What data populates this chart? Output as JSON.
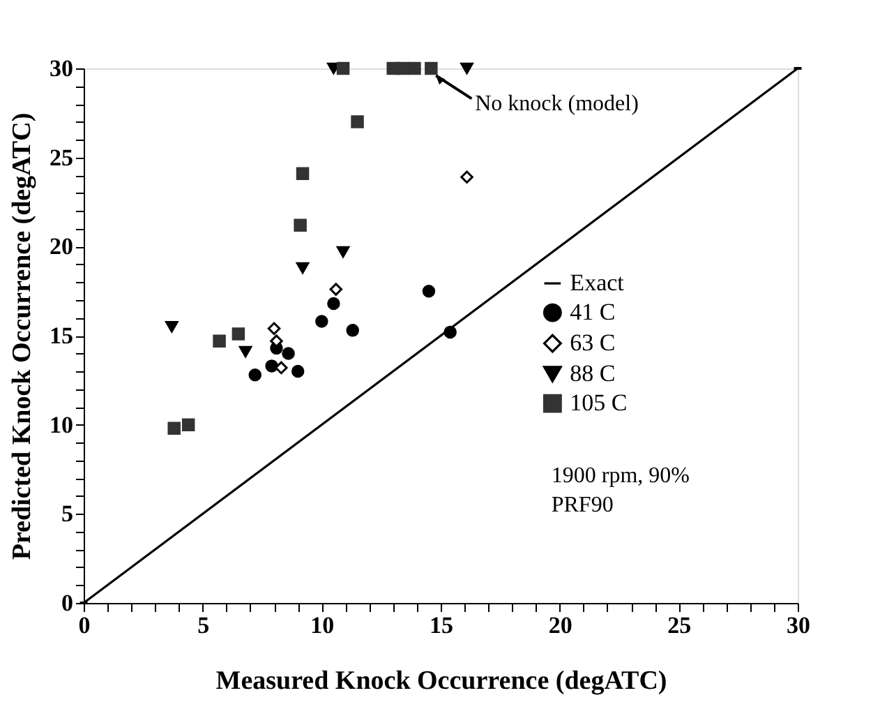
{
  "chart_data": {
    "type": "scatter",
    "xlabel": "Measured Knock Occurrence (degATC)",
    "ylabel": "Predicted Knock Occurrence (degATC)",
    "xlim": [
      0,
      30
    ],
    "ylim": [
      0,
      30
    ],
    "xticks": [
      0,
      {
        "value": 1,
        "label": null
      },
      {
        "value": 2,
        "label": null
      },
      {
        "value": 3,
        "label": null
      },
      {
        "value": 4,
        "label": null
      },
      5,
      {
        "value": 6,
        "label": null
      },
      {
        "value": 7,
        "label": null
      },
      {
        "value": 8,
        "label": null
      },
      {
        "value": 9,
        "label": null
      },
      10,
      {
        "value": 11,
        "label": null
      },
      {
        "value": 12,
        "label": null
      },
      {
        "value": 13,
        "label": null
      },
      {
        "value": 14,
        "label": null
      },
      15,
      {
        "value": 16,
        "label": null
      },
      {
        "value": 17,
        "label": null
      },
      {
        "value": 18,
        "label": null
      },
      {
        "value": 19,
        "label": null
      },
      20,
      {
        "value": 21,
        "label": null
      },
      {
        "value": 22,
        "label": null
      },
      {
        "value": 23,
        "label": null
      },
      {
        "value": 24,
        "label": null
      },
      25,
      {
        "value": 26,
        "label": null
      },
      {
        "value": 27,
        "label": null
      },
      {
        "value": 28,
        "label": null
      },
      {
        "value": 29,
        "label": null
      },
      30
    ],
    "yticks": [
      0,
      {
        "value": 1,
        "label": null
      },
      {
        "value": 2,
        "label": null
      },
      {
        "value": 3,
        "label": null
      },
      {
        "value": 4,
        "label": null
      },
      5,
      {
        "value": 6,
        "label": null
      },
      {
        "value": 7,
        "label": null
      },
      {
        "value": 8,
        "label": null
      },
      {
        "value": 9,
        "label": null
      },
      10,
      {
        "value": 11,
        "label": null
      },
      {
        "value": 12,
        "label": null
      },
      {
        "value": 13,
        "label": null
      },
      {
        "value": 14,
        "label": null
      },
      15,
      {
        "value": 16,
        "label": null
      },
      {
        "value": 17,
        "label": null
      },
      {
        "value": 18,
        "label": null
      },
      {
        "value": 19,
        "label": null
      },
      20,
      {
        "value": 21,
        "label": null
      },
      {
        "value": 22,
        "label": null
      },
      {
        "value": 23,
        "label": null
      },
      {
        "value": 24,
        "label": null
      },
      25,
      {
        "value": 26,
        "label": null
      },
      {
        "value": 27,
        "label": null
      },
      {
        "value": 28,
        "label": null
      },
      {
        "value": 29,
        "label": null
      },
      30
    ],
    "grid": false,
    "legend": "right",
    "series": [
      {
        "name": "Exact",
        "type": "line",
        "color": "#000000",
        "line_style": "solid",
        "marker": "none",
        "x": [
          0,
          30
        ],
        "values": [
          0,
          30
        ]
      },
      {
        "name": "41 C",
        "color": "#000000",
        "marker": "circle",
        "x": [
          7.2,
          7.9,
          8.6,
          8.1,
          9.0,
          10.0,
          10.5,
          11.3,
          14.5,
          15.4
        ],
        "values": [
          12.8,
          13.3,
          14.0,
          14.3,
          13.0,
          15.8,
          16.8,
          15.3,
          17.5,
          15.2
        ]
      },
      {
        "name": "63 C",
        "color": "#000000",
        "marker": "diamond",
        "x": [
          8.0,
          8.1,
          8.3,
          10.6,
          16.1
        ],
        "values": [
          15.4,
          14.7,
          13.2,
          17.6,
          23.9
        ]
      },
      {
        "name": "88 C",
        "color": "#000000",
        "marker": "triangle",
        "x": [
          3.7,
          6.8,
          9.2,
          10.9,
          10.5,
          16.1
        ],
        "values": [
          15.5,
          14.1,
          18.8,
          19.7,
          30,
          30
        ]
      },
      {
        "name": "105 C",
        "color": "#333333",
        "marker": "square",
        "x": [
          3.8,
          4.4,
          5.7,
          6.5,
          9.1,
          9.2,
          11.5,
          10.9,
          13.0,
          13.4,
          13.9,
          14.6
        ],
        "values": [
          9.8,
          10.0,
          14.7,
          15.1,
          21.2,
          24.1,
          27.0,
          30,
          30,
          30,
          30,
          30
        ]
      }
    ],
    "annotations": [
      {
        "text": "No knock (model)",
        "x": 14.8,
        "y": 29.6
      },
      "1900 rpm, 90%",
      "PRF90"
    ]
  }
}
